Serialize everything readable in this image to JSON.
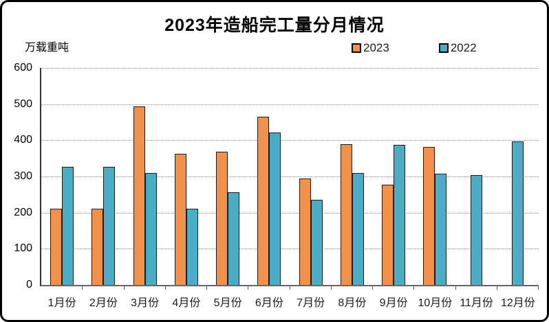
{
  "chart_data": {
    "type": "bar",
    "title": "2023年造船完工量分月情况",
    "ylabel": "万载重吨",
    "xlabel": "",
    "categories": [
      "1月份",
      "2月份",
      "3月份",
      "4月份",
      "5月份",
      "6月份",
      "7月份",
      "8月份",
      "9月份",
      "10月份",
      "11月份",
      "12月份"
    ],
    "series": [
      {
        "name": "2023",
        "color": "#F2924A",
        "values": [
          211,
          211,
          494,
          363,
          368,
          465,
          295,
          389,
          277,
          382,
          null,
          null
        ]
      },
      {
        "name": "2022",
        "color": "#4BACC6",
        "values": [
          326,
          327,
          309,
          210,
          257,
          421,
          235,
          310,
          387,
          308,
          304,
          396
        ]
      }
    ],
    "ylim": [
      0,
      600
    ],
    "yticks": [
      "0",
      "100",
      "200",
      "300",
      "400",
      "500",
      "600"
    ],
    "grid": "horizontal-dotted",
    "legend_position": "top-right",
    "bar_border_color": "#1a1a1a"
  }
}
